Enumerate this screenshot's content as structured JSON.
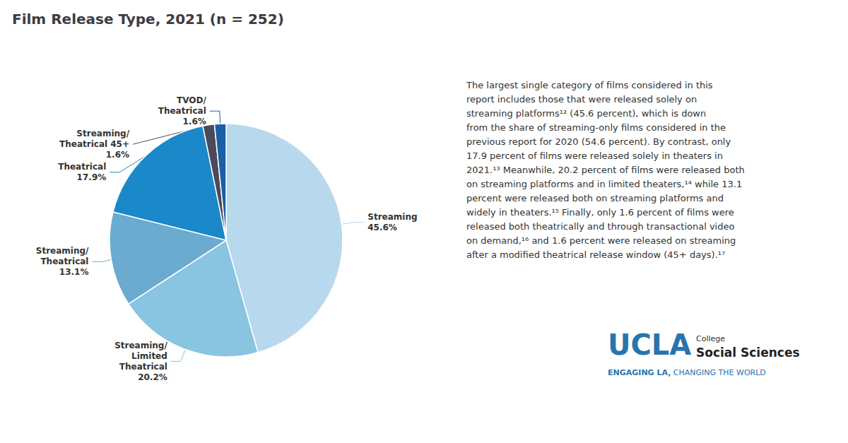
{
  "chart_data": {
    "type": "pie",
    "title": "Film Release Type, 2021 (n = 252)",
    "categories": [
      "Streaming",
      "Streaming/\nLimited\nTheatrical",
      "Streaming/\nTheatrical",
      "Theatrical",
      "Streaming/\nTheatrical 45+",
      "TVOD/\nTheatrical"
    ],
    "values": [
      45.6,
      20.2,
      13.1,
      17.9,
      1.6,
      1.6
    ],
    "value_labels": [
      "45.6%",
      "20.2%",
      "13.1%",
      "17.9%",
      "1.6%",
      "1.6%"
    ],
    "colors": [
      "#b8d9ed",
      "#89c4e0",
      "#6aabcf",
      "#1a88c9",
      "#4a4a5a",
      "#1a5fa8"
    ],
    "data_labels": true,
    "legend": false,
    "annotations": [
      {
        "text": "The largest single category of films considered in this\nreport includes those that were released solely on\nstreaming platforms¹² (45.6 percent), which is down\nfrom the share of streaming-only films considered in the\nprevious report for 2020 (54.6 percent). By contrast, only\n17.9 percent of films were released solely in theaters in\n2021.¹³ Meanwhile, 20.2 percent of films were released both\non streaming platforms and in limited theaters,¹⁴ while 13.1\npercent were released both on streaming platforms and\nwidely in theaters.¹⁵ Finally, only 1.6 percent of films were\nreleased both theatrically and through transactional video\non demand,¹⁶ and 1.6 percent were released on streaming\nafter a modified theatrical release window (45+ days).¹⁷"
      },
      {
        "text": "UCLA",
        "color": "#2774AE"
      },
      {
        "text": "College"
      },
      {
        "text": "Social Sciences"
      },
      {
        "text": "ENGAGING LA,",
        "color": "#2774AE"
      },
      {
        "text": " CHANGING THE WORLD",
        "color": "#2774AE"
      }
    ]
  }
}
